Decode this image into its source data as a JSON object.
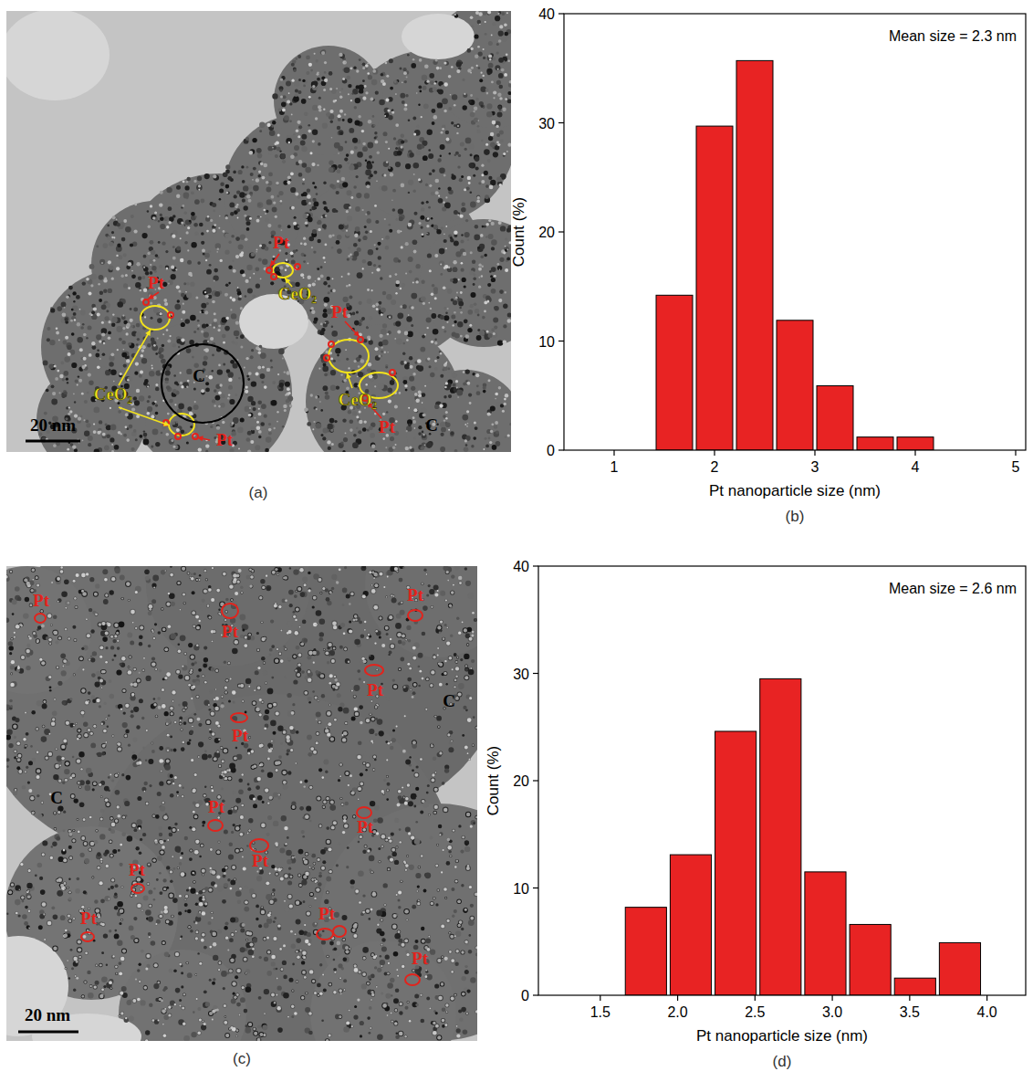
{
  "chart_data": [
    {
      "type": "histogram",
      "caption": "(b)",
      "annotation": "Mean size = 2.3 nm",
      "x_label": "Pt nanoparticle size (nm)",
      "y_label": "Count (%)",
      "bins": [
        1.4,
        1.8,
        2.2,
        2.6,
        3.0,
        3.4,
        3.8,
        4.2
      ],
      "values": [
        14.2,
        29.7,
        35.7,
        11.9,
        5.9,
        1.2,
        1.2
      ],
      "color": "#e82323",
      "xlim": [
        0.5,
        5.1
      ],
      "xticks": [
        1,
        2,
        3,
        4,
        5
      ],
      "ylim": [
        0,
        40
      ],
      "yticks": [
        0,
        10,
        20,
        30,
        40
      ]
    },
    {
      "type": "histogram",
      "caption": "(d)",
      "annotation": "Mean size = 2.6 nm",
      "x_label": "Pt nanoparticle size (nm)",
      "y_label": "Count (%)",
      "bins": [
        1.65,
        1.94,
        2.23,
        2.52,
        2.81,
        3.1,
        3.39,
        3.68,
        3.97
      ],
      "values": [
        8.2,
        13.1,
        24.6,
        29.5,
        11.5,
        6.6,
        1.6,
        4.9
      ],
      "color": "#e82323",
      "xlim": [
        1.1,
        4.25
      ],
      "xticks": [
        1.5,
        {
          "value": 2,
          "label": "2.0"
        },
        2.5,
        {
          "value": 3,
          "label": "3.0"
        },
        3.5,
        {
          "value": 4,
          "label": "4.0"
        }
      ],
      "ylim": [
        0,
        40
      ],
      "yticks": [
        0,
        10,
        20,
        30,
        40
      ]
    }
  ],
  "micrographs": [
    {
      "caption": "(a)",
      "scale_bar": "20 nm",
      "labels": [
        "Pt",
        "Pt",
        "Pt",
        "Pt",
        "Pt",
        "CeO₂",
        "CeO₂",
        "CeO₂",
        "C",
        "C"
      ]
    },
    {
      "caption": "(c)",
      "scale_bar": "20 nm",
      "labels": [
        "Pt",
        "Pt",
        "Pt",
        "Pt",
        "Pt",
        "Pt",
        "Pt",
        "Pt",
        "Pt",
        "Pt",
        "Pt",
        "Pt",
        "C",
        "C"
      ]
    }
  ]
}
